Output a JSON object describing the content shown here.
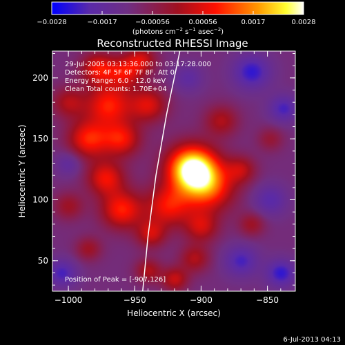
{
  "chart_data": {
    "type": "heatmap",
    "title": "Reconstructed RHESSI Image",
    "xlabel": "Heliocentric X (arcsec)",
    "ylabel": "Heliocentric Y (arcsec)",
    "xlim": [
      -1012,
      -829
    ],
    "ylim": [
      25,
      222
    ],
    "xticks": [
      -1000,
      -950,
      -900,
      -850
    ],
    "yticks": [
      50,
      100,
      150,
      200
    ],
    "xtick_labels": [
      "−1000",
      "−950",
      "−900",
      "−850"
    ],
    "ytick_labels": [
      "50",
      "100",
      "150",
      "200"
    ],
    "colorbar": {
      "range": [
        -0.0028,
        0.0028
      ],
      "tick_labels": [
        "−0.0028",
        "−0.0017",
        "−0.00056",
        "0.00056",
        "0.0017",
        "0.0028"
      ],
      "units_text": "(photons cm",
      "units_exp1": "−2",
      "units_mid": " s",
      "units_exp2": "−1",
      "units_end": " asec",
      "units_exp3": "−2",
      "units_close": ")"
    },
    "annotations": [
      "29-Jul-2005 03:13:36.000 to 03:17:28.000",
      "Detectors: 4F 5F 6F 7F 8F, Att 0",
      "Energy Range: 6.0 - 12.0 keV",
      "Clean     Total counts: 1.70E+04"
    ],
    "peak_label": "Position of Peak = [-907,126]",
    "peak": {
      "x": -907,
      "y": 126
    },
    "blobs": [
      {
        "x": -907,
        "y": 126,
        "amp": 1.0,
        "s": 13
      },
      {
        "x": -895,
        "y": 110,
        "amp": 0.55,
        "s": 14
      },
      {
        "x": -925,
        "y": 95,
        "amp": 0.45,
        "s": 12
      },
      {
        "x": -978,
        "y": 208,
        "amp": 0.45,
        "s": 9
      },
      {
        "x": -958,
        "y": 205,
        "amp": 0.4,
        "s": 9
      },
      {
        "x": -970,
        "y": 178,
        "amp": 0.5,
        "s": 12
      },
      {
        "x": -985,
        "y": 150,
        "amp": 0.5,
        "s": 11
      },
      {
        "x": -960,
        "y": 150,
        "amp": 0.45,
        "s": 10
      },
      {
        "x": -940,
        "y": 178,
        "amp": 0.4,
        "s": 10
      },
      {
        "x": -945,
        "y": 215,
        "amp": 0.35,
        "s": 8
      },
      {
        "x": -972,
        "y": 118,
        "amp": 0.45,
        "s": 10
      },
      {
        "x": -960,
        "y": 92,
        "amp": 0.5,
        "s": 11
      },
      {
        "x": -938,
        "y": 72,
        "amp": 0.35,
        "s": 8
      },
      {
        "x": -900,
        "y": 78,
        "amp": 0.35,
        "s": 9
      },
      {
        "x": -905,
        "y": 52,
        "amp": 0.3,
        "s": 8
      },
      {
        "x": -940,
        "y": 42,
        "amp": 0.3,
        "s": 7
      },
      {
        "x": -920,
        "y": 35,
        "amp": 0.35,
        "s": 7
      },
      {
        "x": -885,
        "y": 165,
        "amp": 0.3,
        "s": 9
      },
      {
        "x": -870,
        "y": 125,
        "amp": 0.3,
        "s": 8
      },
      {
        "x": -1000,
        "y": 180,
        "amp": 0.3,
        "s": 9
      },
      {
        "x": -1000,
        "y": 95,
        "amp": 0.25,
        "s": 8
      },
      {
        "x": -985,
        "y": 60,
        "amp": 0.25,
        "s": 7
      },
      {
        "x": -862,
        "y": 80,
        "amp": 0.25,
        "s": 7
      },
      {
        "x": -848,
        "y": 150,
        "amp": 0.2,
        "s": 7
      },
      {
        "x": -848,
        "y": 100,
        "amp": -0.25,
        "s": 9
      },
      {
        "x": -862,
        "y": 205,
        "amp": -0.35,
        "s": 10
      },
      {
        "x": -838,
        "y": 175,
        "amp": -0.3,
        "s": 8
      },
      {
        "x": -870,
        "y": 50,
        "amp": -0.3,
        "s": 9
      },
      {
        "x": -1005,
        "y": 40,
        "amp": -0.3,
        "s": 8
      },
      {
        "x": -1000,
        "y": 130,
        "amp": -0.2,
        "s": 7
      },
      {
        "x": -910,
        "y": 200,
        "amp": -0.2,
        "s": 8
      },
      {
        "x": -840,
        "y": 40,
        "amp": -0.35,
        "s": 8
      }
    ],
    "limb": [
      [
        -944,
        25
      ],
      [
        -940,
        70
      ],
      [
        -934,
        120
      ],
      [
        -926,
        170
      ],
      [
        -916,
        222
      ]
    ],
    "grid": false
  },
  "footer_date": "6-Jul-2013 04:13"
}
